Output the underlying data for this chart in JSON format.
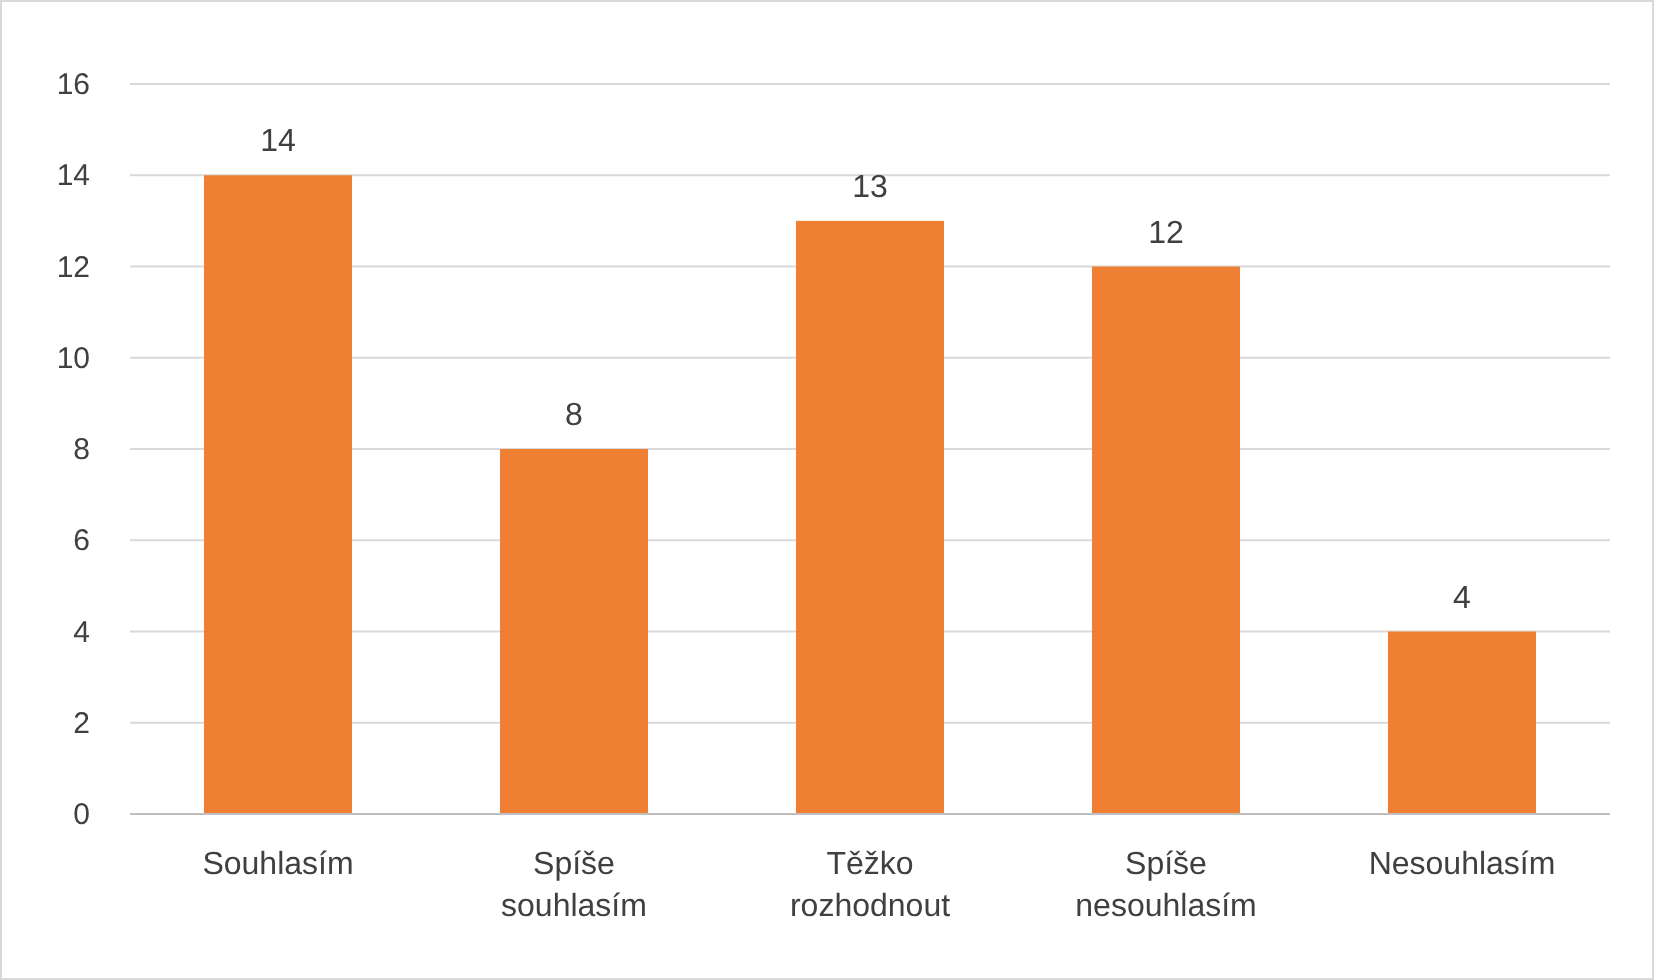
{
  "chart_data": {
    "type": "bar",
    "categories": [
      "Souhlasím",
      "Spíše souhlasím",
      "Těžko rozhodnout",
      "Spíše nesouhlasím",
      "Nesouhlasím"
    ],
    "values": [
      14,
      8,
      13,
      12,
      4
    ],
    "color": "#ef7f33",
    "ylim": [
      0,
      16
    ],
    "yticks": [
      0,
      2,
      4,
      6,
      8,
      10,
      12,
      14,
      16
    ],
    "grid": "y",
    "data_labels": true
  }
}
